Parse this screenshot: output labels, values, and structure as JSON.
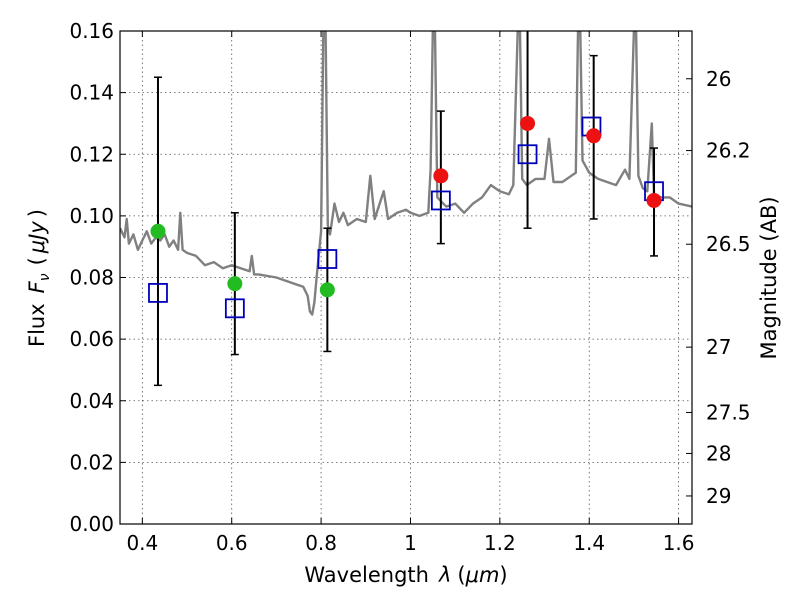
{
  "chart_data": {
    "type": "scatter",
    "xlabel": "Wavelength",
    "xlabel_symbol": "λ",
    "xlabel_unit": "μm",
    "ylabel": "Flux",
    "ylabel_symbol": "F",
    "ylabel_subscript": "ν",
    "ylabel_unit": "μJy",
    "y2label": "Magnitude (AB)",
    "xlim": [
      0.35,
      1.63
    ],
    "ylim": [
      0.0,
      0.16
    ],
    "grid": true,
    "x_ticks": [
      {
        "value": 0.4,
        "label": "0.4"
      },
      {
        "value": 0.6,
        "label": "0.6"
      },
      {
        "value": 0.8,
        "label": "0.8"
      },
      {
        "value": 1.0,
        "label": "1"
      },
      {
        "value": 1.2,
        "label": "1.2"
      },
      {
        "value": 1.4,
        "label": "1.4"
      },
      {
        "value": 1.6,
        "label": "1.6"
      }
    ],
    "y_ticks": [
      {
        "value": 0.0,
        "label": "0.00"
      },
      {
        "value": 0.02,
        "label": "0.02"
      },
      {
        "value": 0.04,
        "label": "0.04"
      },
      {
        "value": 0.06,
        "label": "0.06"
      },
      {
        "value": 0.08,
        "label": "0.08"
      },
      {
        "value": 0.1,
        "label": "0.10"
      },
      {
        "value": 0.12,
        "label": "0.12"
      },
      {
        "value": 0.14,
        "label": "0.14"
      },
      {
        "value": 0.16,
        "label": "0.16"
      }
    ],
    "y2_ticks": [
      {
        "flux": 0.1445,
        "label": "26"
      },
      {
        "flux": 0.1212,
        "label": "26.2"
      },
      {
        "flux": 0.0908,
        "label": "26.5"
      },
      {
        "flux": 0.0574,
        "label": "27"
      },
      {
        "flux": 0.0362,
        "label": "27.5"
      },
      {
        "flux": 0.0229,
        "label": "28"
      },
      {
        "flux": 0.0091,
        "label": "29"
      }
    ],
    "series": [
      {
        "kind": "line",
        "color": "#808080",
        "points": [
          [
            0.35,
            0.096
          ],
          [
            0.36,
            0.093
          ],
          [
            0.365,
            0.099
          ],
          [
            0.37,
            0.091
          ],
          [
            0.38,
            0.094
          ],
          [
            0.39,
            0.089
          ],
          [
            0.4,
            0.092
          ],
          [
            0.41,
            0.095
          ],
          [
            0.42,
            0.091
          ],
          [
            0.43,
            0.093
          ],
          [
            0.44,
            0.092
          ],
          [
            0.45,
            0.094
          ],
          [
            0.46,
            0.09
          ],
          [
            0.47,
            0.092
          ],
          [
            0.48,
            0.089
          ],
          [
            0.485,
            0.101
          ],
          [
            0.49,
            0.089
          ],
          [
            0.5,
            0.088
          ],
          [
            0.52,
            0.087
          ],
          [
            0.54,
            0.084
          ],
          [
            0.56,
            0.085
          ],
          [
            0.58,
            0.083
          ],
          [
            0.6,
            0.084
          ],
          [
            0.62,
            0.083
          ],
          [
            0.64,
            0.082
          ],
          [
            0.645,
            0.087
          ],
          [
            0.65,
            0.081
          ],
          [
            0.66,
            0.081
          ],
          [
            0.7,
            0.08
          ],
          [
            0.74,
            0.078
          ],
          [
            0.76,
            0.077
          ],
          [
            0.77,
            0.074
          ],
          [
            0.775,
            0.069
          ],
          [
            0.78,
            0.068
          ],
          [
            0.785,
            0.072
          ],
          [
            0.79,
            0.08
          ],
          [
            0.8,
            0.095
          ],
          [
            0.805,
            0.16
          ],
          [
            0.81,
            0.16
          ],
          [
            0.815,
            0.097
          ],
          [
            0.82,
            0.094
          ],
          [
            0.83,
            0.104
          ],
          [
            0.84,
            0.098
          ],
          [
            0.85,
            0.101
          ],
          [
            0.86,
            0.097
          ],
          [
            0.88,
            0.099
          ],
          [
            0.9,
            0.098
          ],
          [
            0.91,
            0.113
          ],
          [
            0.92,
            0.099
          ],
          [
            0.94,
            0.108
          ],
          [
            0.95,
            0.099
          ],
          [
            0.97,
            0.101
          ],
          [
            0.99,
            0.102
          ],
          [
            1.0,
            0.101
          ],
          [
            1.02,
            0.1
          ],
          [
            1.04,
            0.101
          ],
          [
            1.045,
            0.115
          ],
          [
            1.05,
            0.16
          ],
          [
            1.055,
            0.16
          ],
          [
            1.06,
            0.106
          ],
          [
            1.08,
            0.103
          ],
          [
            1.1,
            0.104
          ],
          [
            1.12,
            0.101
          ],
          [
            1.14,
            0.104
          ],
          [
            1.16,
            0.106
          ],
          [
            1.18,
            0.11
          ],
          [
            1.2,
            0.108
          ],
          [
            1.22,
            0.107
          ],
          [
            1.23,
            0.11
          ],
          [
            1.24,
            0.16
          ],
          [
            1.245,
            0.16
          ],
          [
            1.25,
            0.112
          ],
          [
            1.26,
            0.11
          ],
          [
            1.28,
            0.112
          ],
          [
            1.3,
            0.112
          ],
          [
            1.31,
            0.125
          ],
          [
            1.32,
            0.111
          ],
          [
            1.34,
            0.111
          ],
          [
            1.36,
            0.113
          ],
          [
            1.37,
            0.114
          ],
          [
            1.375,
            0.16
          ],
          [
            1.38,
            0.16
          ],
          [
            1.385,
            0.118
          ],
          [
            1.4,
            0.114
          ],
          [
            1.42,
            0.112
          ],
          [
            1.44,
            0.111
          ],
          [
            1.46,
            0.11
          ],
          [
            1.48,
            0.115
          ],
          [
            1.49,
            0.112
          ],
          [
            1.5,
            0.16
          ],
          [
            1.505,
            0.16
          ],
          [
            1.51,
            0.113
          ],
          [
            1.52,
            0.109
          ],
          [
            1.53,
            0.108
          ],
          [
            1.54,
            0.13
          ],
          [
            1.545,
            0.107
          ],
          [
            1.56,
            0.106
          ],
          [
            1.58,
            0.106
          ],
          [
            1.6,
            0.104
          ],
          [
            1.63,
            0.103
          ]
        ]
      },
      {
        "kind": "errorbar",
        "color": "#000000",
        "bars": [
          {
            "x": 0.435,
            "low": 0.045,
            "high": 0.145
          },
          {
            "x": 0.607,
            "low": 0.055,
            "high": 0.101
          },
          {
            "x": 0.814,
            "low": 0.056,
            "high": 0.096
          },
          {
            "x": 1.068,
            "low": 0.091,
            "high": 0.134
          },
          {
            "x": 1.262,
            "low": 0.096,
            "high": 0.16
          },
          {
            "x": 1.41,
            "low": 0.099,
            "high": 0.152
          },
          {
            "x": 1.545,
            "low": 0.087,
            "high": 0.122
          }
        ]
      },
      {
        "kind": "points",
        "marker": "square",
        "color": "#0000bb",
        "x": [
          0.435,
          0.607,
          0.814,
          1.068,
          1.262,
          1.405,
          1.545
        ],
        "y": [
          0.075,
          0.07,
          0.086,
          0.105,
          0.12,
          0.129,
          0.108
        ]
      },
      {
        "kind": "points",
        "marker": "circle",
        "color": "#22bb22",
        "x": [
          0.435,
          0.607,
          0.814
        ],
        "y": [
          0.095,
          0.078,
          0.076
        ]
      },
      {
        "kind": "points",
        "marker": "circle",
        "color": "#ee1111",
        "x": [
          1.068,
          1.262,
          1.41,
          1.545
        ],
        "y": [
          0.113,
          0.13,
          0.126,
          0.105
        ]
      }
    ]
  }
}
